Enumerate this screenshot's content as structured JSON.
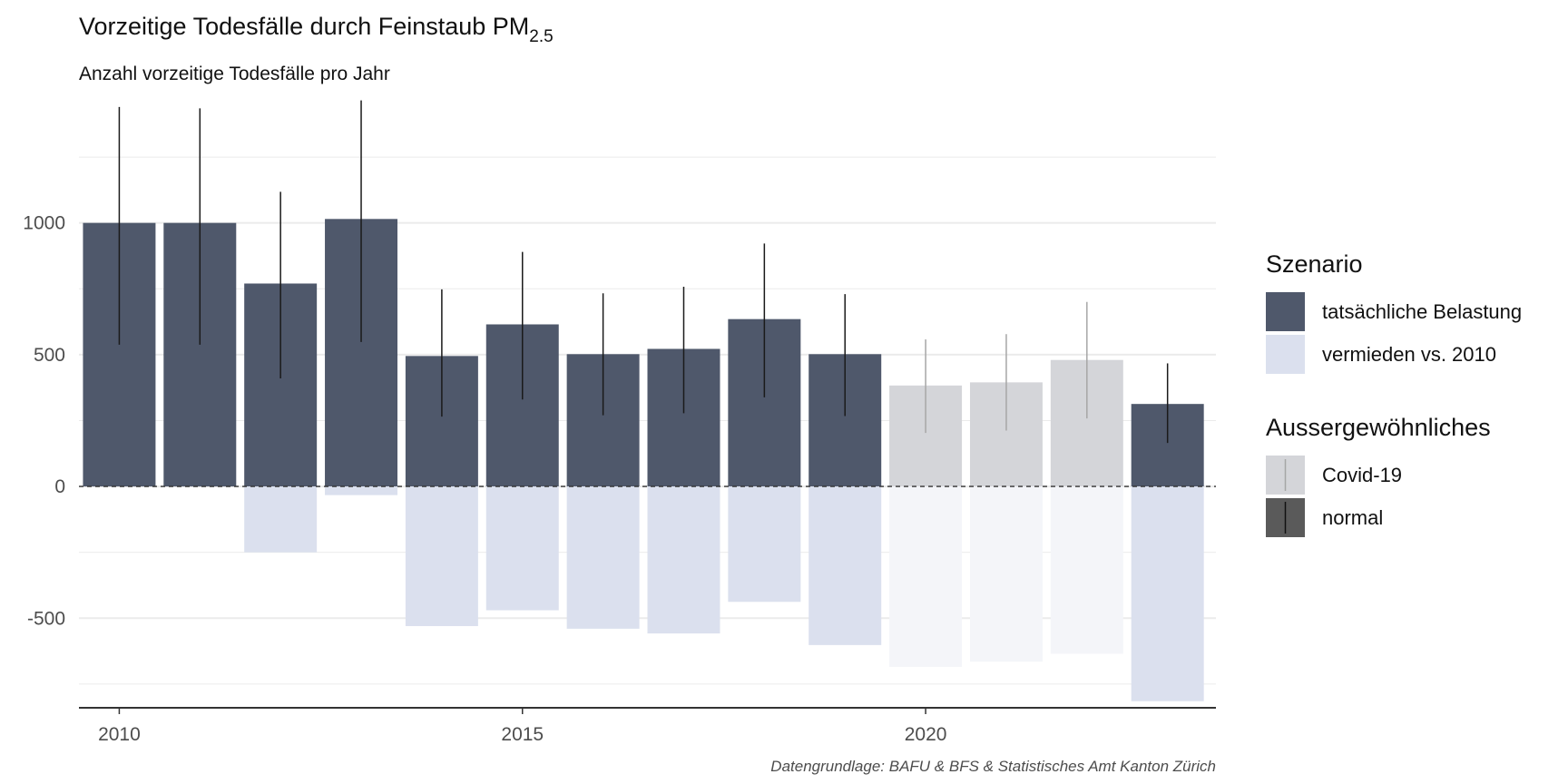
{
  "chart_data": {
    "type": "bar",
    "title": "Vorzeitige Todesfälle durch Feinstaub PM",
    "title_subscript": "2.5",
    "subtitle": "Anzahl vorzeitige Todesfälle pro Jahr",
    "caption": "Datengrundlage: BAFU & BFS & Statistisches Amt Kanton Zürich",
    "x": [
      2010,
      2011,
      2012,
      2013,
      2014,
      2015,
      2016,
      2017,
      2018,
      2019,
      2020,
      2021,
      2022,
      2023
    ],
    "x_ticks": [
      2010,
      2015,
      2020
    ],
    "y_ticks": [
      -500,
      0,
      500,
      1000
    ],
    "ylim": [
      -840,
      1450
    ],
    "xlim": [
      2009.5,
      2023.6
    ],
    "series": [
      {
        "name": "tatsächliche Belastung",
        "values": [
          1000,
          1000,
          770,
          1015,
          495,
          615,
          502,
          522,
          635,
          502,
          383,
          395,
          480,
          313
        ],
        "error_low": [
          538,
          538,
          410,
          548,
          265,
          330,
          270,
          278,
          338,
          267,
          203,
          212,
          258,
          165
        ],
        "error_high": [
          1440,
          1435,
          1118,
          1465,
          748,
          890,
          733,
          758,
          922,
          730,
          558,
          578,
          700,
          467
        ]
      },
      {
        "name": "vermieden vs. 2010",
        "values": [
          0,
          0,
          -250,
          -33,
          -530,
          -470,
          -540,
          -558,
          -438,
          -602,
          -685,
          -665,
          -635,
          -815
        ]
      }
    ],
    "exceptional": [
      "normal",
      "normal",
      "normal",
      "normal",
      "normal",
      "normal",
      "normal",
      "normal",
      "normal",
      "normal",
      "Covid-19",
      "Covid-19",
      "Covid-19",
      "normal"
    ],
    "colors": {
      "actual_normal": "#4f586b",
      "avoided_normal": "#dbe0ee",
      "actual_covid": "#d4d5d9",
      "avoided_covid": "#f4f5f9",
      "error_normal": "#1a1a1a",
      "error_covid": "#a6a6a6",
      "grid": "#ebebeb"
    },
    "grid": true,
    "zero_line": "dashed",
    "legend_position": "right",
    "legend": {
      "groups": [
        {
          "title": "Szenario",
          "items": [
            {
              "label": "tatsächliche Belastung",
              "color": "#4f586b"
            },
            {
              "label": "vermieden vs. 2010",
              "color": "#dbe0ee"
            }
          ]
        },
        {
          "title": "Aussergewöhnliches",
          "items": [
            {
              "label": "Covid-19",
              "color": "#d4d5d9",
              "line": "#a6a6a6"
            },
            {
              "label": "normal",
              "color": "#5a5a5a",
              "line": "#111111"
            }
          ]
        }
      ]
    }
  }
}
